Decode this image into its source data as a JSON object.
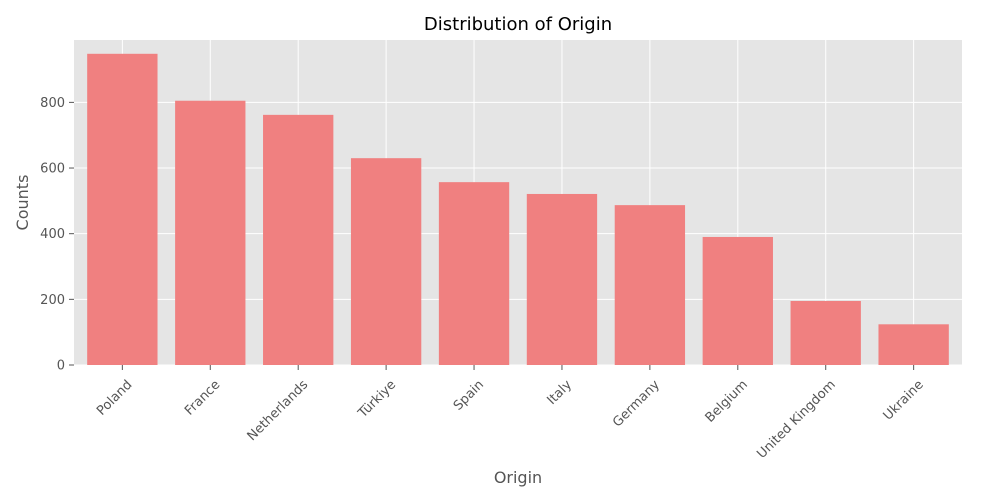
{
  "chart_data": {
    "type": "bar",
    "title": "Distribution of Origin",
    "xlabel": "Origin",
    "ylabel": "Counts",
    "categories": [
      "Poland",
      "France",
      "Netherlands",
      "Türkiye",
      "Spain",
      "Italy",
      "Germany",
      "Belgium",
      "United Kingdom",
      "Ukraine"
    ],
    "values": [
      948,
      805,
      762,
      630,
      557,
      521,
      487,
      390,
      195,
      124
    ],
    "yticks": [
      0,
      200,
      400,
      600,
      800
    ],
    "ylim": [
      0,
      990
    ],
    "grid": true,
    "bar_color": "#f08080",
    "plot_background": "#e5e5e5",
    "grid_color": "#ffffff"
  }
}
